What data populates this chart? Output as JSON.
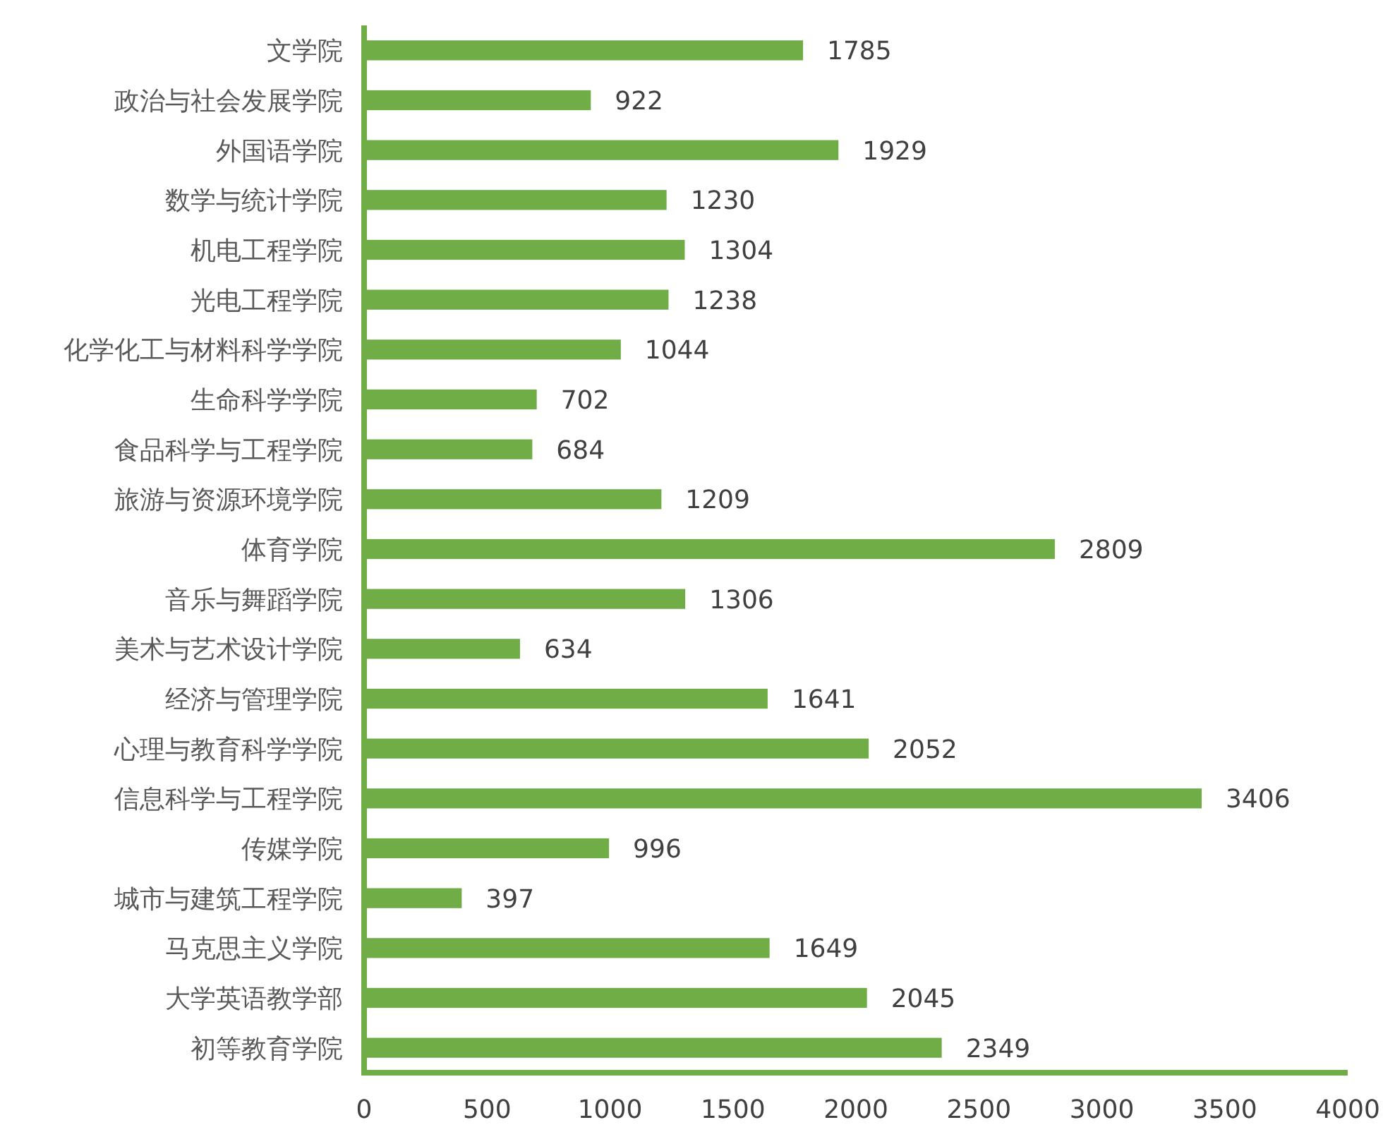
{
  "chart_data": {
    "type": "bar",
    "orientation": "horizontal",
    "categories": [
      "文学院",
      "政治与社会发展学院",
      "外国语学院",
      "数学与统计学院",
      "机电工程学院",
      "光电工程学院",
      "化学化工与材料科学学院",
      "生命科学学院",
      "食品科学与工程学院",
      "旅游与资源环境学院",
      "体育学院",
      "音乐与舞蹈学院",
      "美术与艺术设计学院",
      "经济与管理学院",
      "心理与教育科学学院",
      "信息科学与工程学院",
      "传媒学院",
      "城市与建筑工程学院",
      "马克思主义学院",
      "大学英语教学部",
      "初等教育学院"
    ],
    "values": [
      1785,
      922,
      1929,
      1230,
      1304,
      1238,
      1044,
      702,
      684,
      1209,
      2809,
      1306,
      634,
      1641,
      2052,
      3406,
      996,
      397,
      1649,
      2045,
      2349
    ],
    "color": "#70ad47",
    "xlim": [
      0,
      4000
    ],
    "xticks": [
      0,
      500,
      1000,
      1500,
      2000,
      2500,
      3000,
      3500,
      4000
    ],
    "data_labels": true
  }
}
